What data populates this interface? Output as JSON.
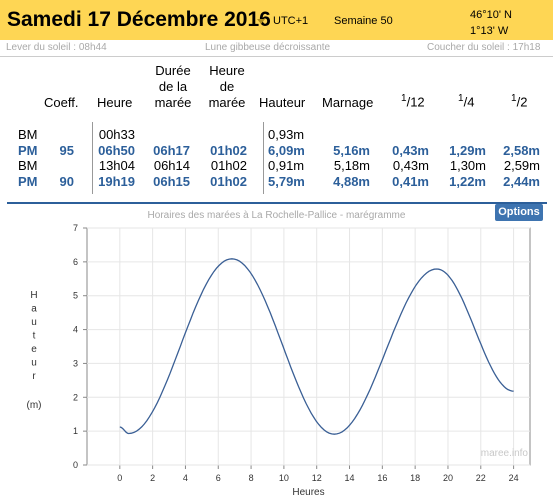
{
  "header": {
    "date": "Samedi 17 Décembre 2016",
    "timezone": "UTC+1",
    "week": "Semaine 50",
    "lat": "46°10' N",
    "lon": "1°13' W"
  },
  "sun": {
    "sunrise": "Lever du soleil : 08h44",
    "moon": "Lune gibbeuse décroissante",
    "sunset": "Coucher du soleil : 17h18"
  },
  "table": {
    "headers": {
      "coeff": "Coeff.",
      "heure": "Heure",
      "duree": "Durée de la marée",
      "heure_maree": "Heure de marée",
      "hauteur": "Hauteur",
      "marnage": "Marnage",
      "f12": "12",
      "f4": "4",
      "f2": "2"
    },
    "rows": [
      {
        "type": "BM",
        "coeff": "",
        "heure": "00h33",
        "duree": "",
        "heure_maree": "",
        "hauteur": "0,93m",
        "marnage": "",
        "f12": "",
        "f4": "",
        "f2": "",
        "highlight": false
      },
      {
        "type": "PM",
        "coeff": "95",
        "heure": "06h50",
        "duree": "06h17",
        "heure_maree": "01h02",
        "hauteur": "6,09m",
        "marnage": "5,16m",
        "f12": "0,43m",
        "f4": "1,29m",
        "f2": "2,58m",
        "highlight": true
      },
      {
        "type": "BM",
        "coeff": "",
        "heure": "13h04",
        "duree": "06h14",
        "heure_maree": "01h02",
        "hauteur": "0,91m",
        "marnage": "5,18m",
        "f12": "0,43m",
        "f4": "1,30m",
        "f2": "2,59m",
        "highlight": false
      },
      {
        "type": "PM",
        "coeff": "90",
        "heure": "19h19",
        "duree": "06h15",
        "heure_maree": "01h02",
        "hauteur": "5,79m",
        "marnage": "4,88m",
        "f12": "0,41m",
        "f4": "1,22m",
        "f2": "2,44m",
        "highlight": true
      }
    ]
  },
  "chart_title": "Horaires des marées à La Rochelle-Pallice - marégramme",
  "options_label": "Options",
  "watermark": "maree.info",
  "colors": {
    "header_bg": "#fed654",
    "accent": "#2c5f9a",
    "curve": "#3a5f95"
  },
  "chart_data": {
    "type": "line",
    "xlabel": "Heures",
    "ylabel": "Hauteur",
    "yunit": "(m)",
    "xlim": [
      -2,
      25
    ],
    "ylim": [
      0,
      7
    ],
    "xticks": [
      0,
      2,
      4,
      6,
      8,
      10,
      12,
      14,
      16,
      18,
      20,
      22,
      24
    ],
    "yticks": [
      0,
      1,
      2,
      3,
      4,
      5,
      6,
      7
    ],
    "grid": true,
    "series": [
      {
        "x": [
          0.0,
          0.55,
          6.83,
          13.07,
          19.32,
          24.0
        ],
        "y": [
          1.12,
          0.93,
          6.09,
          0.91,
          5.79,
          2.18
        ]
      }
    ]
  }
}
